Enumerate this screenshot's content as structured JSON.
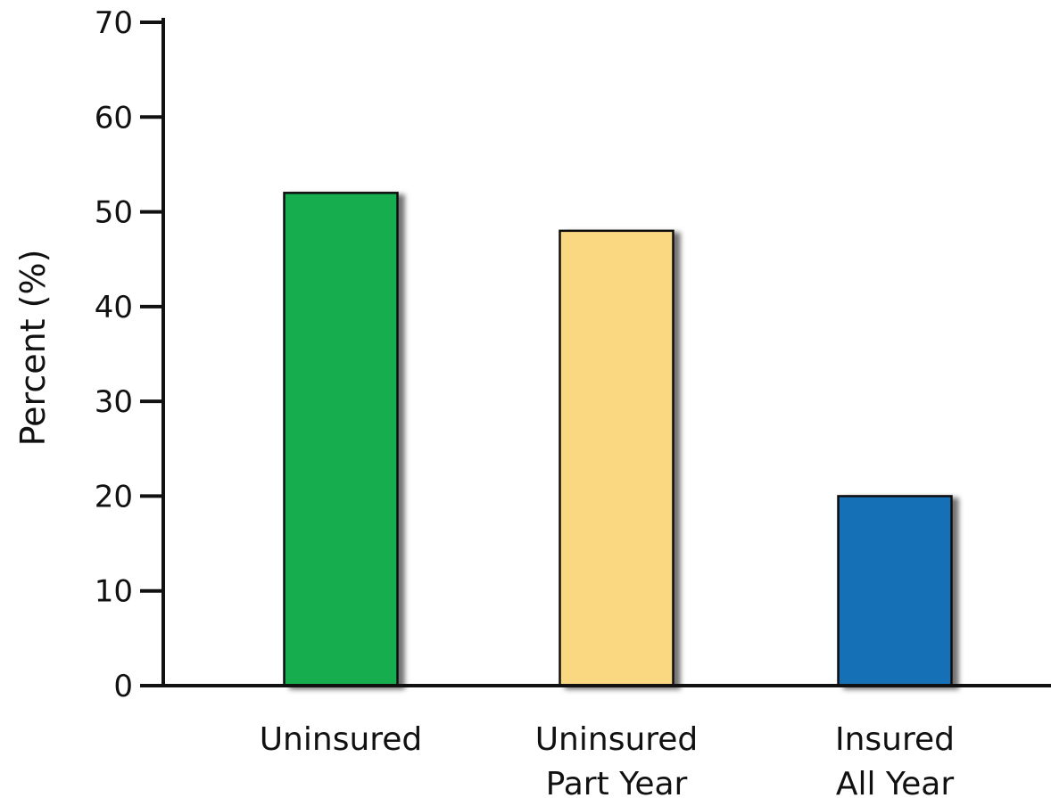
{
  "chart_data": {
    "type": "bar",
    "title": "",
    "xlabel": "",
    "ylabel": "Percent (%)",
    "ylim": [
      0,
      70
    ],
    "yticks": [
      "0",
      "10",
      "20",
      "30",
      "40",
      "50",
      "60",
      "70"
    ],
    "categories": [
      [
        "Uninsured"
      ],
      [
        "Uninsured",
        "Part Year"
      ],
      [
        "Insured",
        "All Year"
      ]
    ],
    "values": [
      52,
      48,
      20
    ],
    "colors": [
      "#12ad50",
      "#fad882",
      "#176fb6"
    ],
    "grid": false,
    "legend": "none"
  }
}
